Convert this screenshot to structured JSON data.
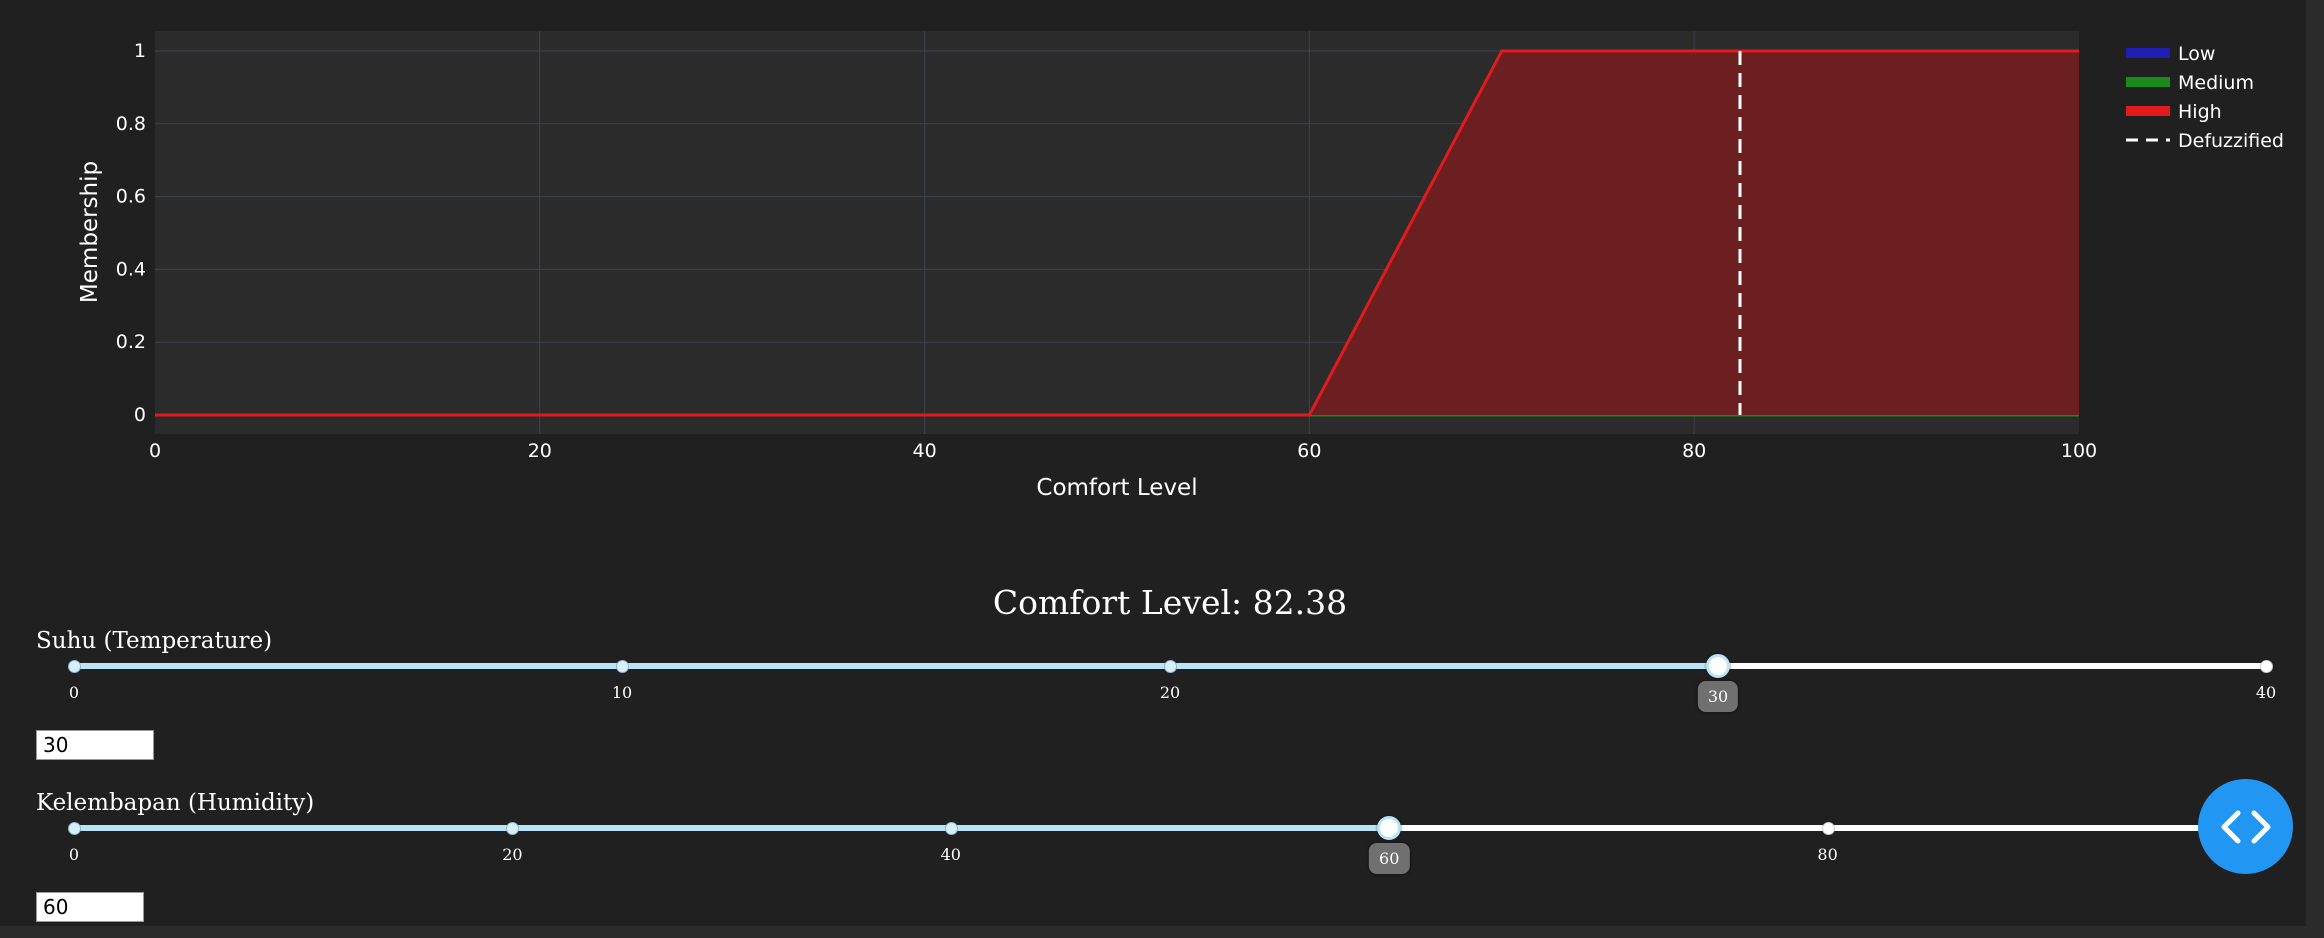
{
  "chart_data": {
    "type": "line",
    "xlabel": "Comfort Level",
    "ylabel": "Membership",
    "xlim": [
      0,
      100
    ],
    "ylim": [
      0,
      1
    ],
    "x_ticks": [
      0,
      20,
      40,
      60,
      80,
      100
    ],
    "y_ticks": [
      0,
      0.2,
      0.4,
      0.6,
      0.8,
      1
    ],
    "y_tick_labels": [
      "0",
      "0.2",
      "0.4",
      "0.6",
      "0.8",
      "1"
    ],
    "grid": true,
    "legend_position": "top-right",
    "series": [
      {
        "name": "Low",
        "color": "#1f1fb4",
        "x": [
          0,
          100
        ],
        "y": [
          0,
          0
        ]
      },
      {
        "name": "Medium",
        "color": "#1a8a1a",
        "x": [
          0,
          60,
          100
        ],
        "y": [
          0,
          0,
          0
        ]
      },
      {
        "name": "High",
        "color": "#e31a1c",
        "fill": "#6b1f20",
        "x": [
          0,
          60,
          70,
          100
        ],
        "y": [
          0,
          0,
          1,
          1
        ]
      }
    ],
    "defuzzified": {
      "name": "Defuzzified",
      "x": 82.38,
      "color": "#ffffff"
    }
  },
  "output": {
    "label": "Comfort Level: 82.38"
  },
  "sliders": [
    {
      "label": "Suhu (Temperature)",
      "min": 0,
      "max": 40,
      "value": 30,
      "value_text": "30",
      "ticks": [
        0,
        10,
        20,
        30,
        40
      ],
      "tick_labels": [
        "0",
        "10",
        "20",
        "",
        "40"
      ]
    },
    {
      "label": "Kelembapan (Humidity)",
      "min": 0,
      "max": 100,
      "value": 60,
      "value_text": "60",
      "ticks": [
        0,
        20,
        40,
        60,
        80,
        100
      ],
      "tick_labels": [
        "0",
        "20",
        "40",
        "",
        "80",
        ""
      ]
    }
  ],
  "fab": {
    "icon": "code-icon"
  }
}
